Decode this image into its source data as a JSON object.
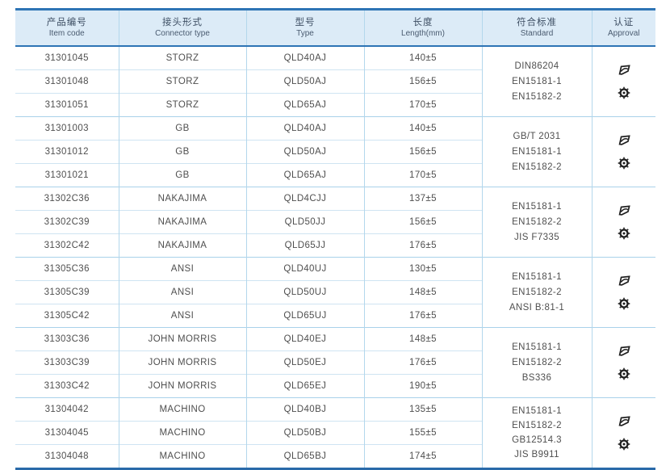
{
  "table": {
    "columns": [
      {
        "zh": "产品编号",
        "en": "Item code"
      },
      {
        "zh": "接头形式",
        "en": "Connector type"
      },
      {
        "zh": "型号",
        "en": "Type"
      },
      {
        "zh": "长度",
        "en": "Length(mm)"
      },
      {
        "zh": "符合标准",
        "en": "Standard"
      },
      {
        "zh": "认证",
        "en": "Approval"
      }
    ],
    "groups": [
      {
        "rows": [
          {
            "code": "31301045",
            "connector": "STORZ",
            "type": "QLD40AJ",
            "length": "140±5"
          },
          {
            "code": "31301048",
            "connector": "STORZ",
            "type": "QLD50AJ",
            "length": "156±5"
          },
          {
            "code": "31301051",
            "connector": "STORZ",
            "type": "QLD65AJ",
            "length": "170±5"
          }
        ],
        "standards": [
          "DIN86204",
          "EN15181-1",
          "EN15182-2"
        ]
      },
      {
        "rows": [
          {
            "code": "31301003",
            "connector": "GB",
            "type": "QLD40AJ",
            "length": "140±5"
          },
          {
            "code": "31301012",
            "connector": "GB",
            "type": "QLD50AJ",
            "length": "156±5"
          },
          {
            "code": "31301021",
            "connector": "GB",
            "type": "QLD65AJ",
            "length": "170±5"
          }
        ],
        "standards": [
          "GB/T 2031",
          "EN15181-1",
          "EN15182-2"
        ]
      },
      {
        "rows": [
          {
            "code": "31302C36",
            "connector": "NAKAJIMA",
            "type": "QLD4CJJ",
            "length": "137±5"
          },
          {
            "code": "31302C39",
            "connector": "NAKAJIMA",
            "type": "QLD50JJ",
            "length": "156±5"
          },
          {
            "code": "31302C42",
            "connector": "NAKAJIMA",
            "type": "QLD65JJ",
            "length": "176±5"
          }
        ],
        "standards": [
          "EN15181-1",
          "EN15182-2",
          "JIS F7335"
        ]
      },
      {
        "rows": [
          {
            "code": "31305C36",
            "connector": "ANSI",
            "type": "QLD40UJ",
            "length": "130±5"
          },
          {
            "code": "31305C39",
            "connector": "ANSI",
            "type": "QLD50UJ",
            "length": "148±5"
          },
          {
            "code": "31305C42",
            "connector": "ANSI",
            "type": "QLD65UJ",
            "length": "176±5"
          }
        ],
        "standards": [
          "EN15181-1",
          "EN15182-2",
          "ANSI B:81-1"
        ]
      },
      {
        "rows": [
          {
            "code": "31303C36",
            "connector": "JOHN MORRIS",
            "type": "QLD40EJ",
            "length": "148±5"
          },
          {
            "code": "31303C39",
            "connector": "JOHN MORRIS",
            "type": "QLD50EJ",
            "length": "176±5"
          },
          {
            "code": "31303C42",
            "connector": "JOHN MORRIS",
            "type": "QLD65EJ",
            "length": "190±5"
          }
        ],
        "standards": [
          "EN15181-1",
          "EN15182-2",
          "BS336"
        ]
      },
      {
        "rows": [
          {
            "code": "31304042",
            "connector": "MACHINO",
            "type": "QLD40BJ",
            "length": "135±5"
          },
          {
            "code": "31304045",
            "connector": "MACHINO",
            "type": "QLD50BJ",
            "length": "155±5"
          },
          {
            "code": "31304048",
            "connector": "MACHINO",
            "type": "QLD65BJ",
            "length": "174±5"
          }
        ],
        "standards": [
          "EN15181-1",
          "EN15182-2",
          "GB12514.3",
          "JIS B9911"
        ]
      }
    ],
    "approval_icons": [
      "certification-logo",
      "certification-seal"
    ]
  },
  "colors": {
    "accent_blue": "#2e74b5",
    "header_bg": "#dcebf7",
    "grid_line": "#b3d7ec",
    "inner_line": "#cfe4f2",
    "text": "#4f4f4f",
    "header_text": "#3d4e63",
    "icon": "#1f1f1f"
  }
}
